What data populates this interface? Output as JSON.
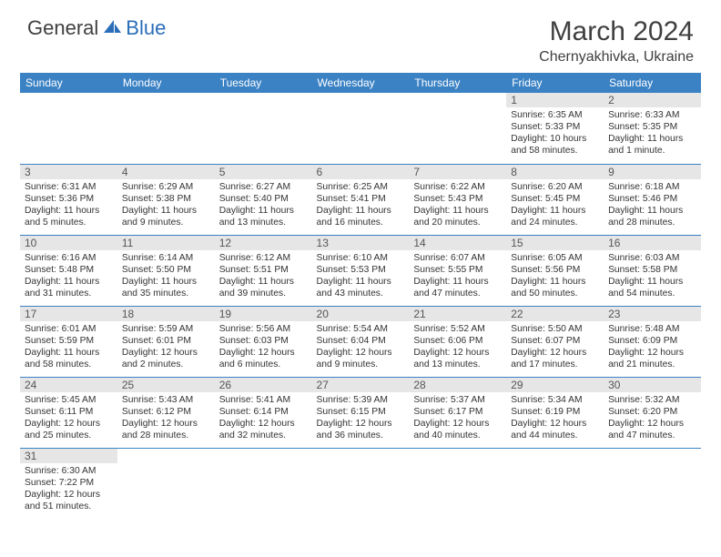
{
  "logo": {
    "text1": "General",
    "text2": "Blue"
  },
  "title": "March 2024",
  "location": "Chernyakhivka, Ukraine",
  "dayHeaders": [
    "Sunday",
    "Monday",
    "Tuesday",
    "Wednesday",
    "Thursday",
    "Friday",
    "Saturday"
  ],
  "colors": {
    "header_bg": "#3b82c4",
    "daynum_bg": "#e6e6e6",
    "row_divider": "#3b82c4",
    "logo_blue": "#2a6db8",
    "text": "#404040"
  },
  "weeks": [
    [
      null,
      null,
      null,
      null,
      null,
      {
        "n": "1",
        "sr": "Sunrise: 6:35 AM",
        "ss": "Sunset: 5:33 PM",
        "d1": "Daylight: 10 hours",
        "d2": "and 58 minutes."
      },
      {
        "n": "2",
        "sr": "Sunrise: 6:33 AM",
        "ss": "Sunset: 5:35 PM",
        "d1": "Daylight: 11 hours",
        "d2": "and 1 minute."
      }
    ],
    [
      {
        "n": "3",
        "sr": "Sunrise: 6:31 AM",
        "ss": "Sunset: 5:36 PM",
        "d1": "Daylight: 11 hours",
        "d2": "and 5 minutes."
      },
      {
        "n": "4",
        "sr": "Sunrise: 6:29 AM",
        "ss": "Sunset: 5:38 PM",
        "d1": "Daylight: 11 hours",
        "d2": "and 9 minutes."
      },
      {
        "n": "5",
        "sr": "Sunrise: 6:27 AM",
        "ss": "Sunset: 5:40 PM",
        "d1": "Daylight: 11 hours",
        "d2": "and 13 minutes."
      },
      {
        "n": "6",
        "sr": "Sunrise: 6:25 AM",
        "ss": "Sunset: 5:41 PM",
        "d1": "Daylight: 11 hours",
        "d2": "and 16 minutes."
      },
      {
        "n": "7",
        "sr": "Sunrise: 6:22 AM",
        "ss": "Sunset: 5:43 PM",
        "d1": "Daylight: 11 hours",
        "d2": "and 20 minutes."
      },
      {
        "n": "8",
        "sr": "Sunrise: 6:20 AM",
        "ss": "Sunset: 5:45 PM",
        "d1": "Daylight: 11 hours",
        "d2": "and 24 minutes."
      },
      {
        "n": "9",
        "sr": "Sunrise: 6:18 AM",
        "ss": "Sunset: 5:46 PM",
        "d1": "Daylight: 11 hours",
        "d2": "and 28 minutes."
      }
    ],
    [
      {
        "n": "10",
        "sr": "Sunrise: 6:16 AM",
        "ss": "Sunset: 5:48 PM",
        "d1": "Daylight: 11 hours",
        "d2": "and 31 minutes."
      },
      {
        "n": "11",
        "sr": "Sunrise: 6:14 AM",
        "ss": "Sunset: 5:50 PM",
        "d1": "Daylight: 11 hours",
        "d2": "and 35 minutes."
      },
      {
        "n": "12",
        "sr": "Sunrise: 6:12 AM",
        "ss": "Sunset: 5:51 PM",
        "d1": "Daylight: 11 hours",
        "d2": "and 39 minutes."
      },
      {
        "n": "13",
        "sr": "Sunrise: 6:10 AM",
        "ss": "Sunset: 5:53 PM",
        "d1": "Daylight: 11 hours",
        "d2": "and 43 minutes."
      },
      {
        "n": "14",
        "sr": "Sunrise: 6:07 AM",
        "ss": "Sunset: 5:55 PM",
        "d1": "Daylight: 11 hours",
        "d2": "and 47 minutes."
      },
      {
        "n": "15",
        "sr": "Sunrise: 6:05 AM",
        "ss": "Sunset: 5:56 PM",
        "d1": "Daylight: 11 hours",
        "d2": "and 50 minutes."
      },
      {
        "n": "16",
        "sr": "Sunrise: 6:03 AM",
        "ss": "Sunset: 5:58 PM",
        "d1": "Daylight: 11 hours",
        "d2": "and 54 minutes."
      }
    ],
    [
      {
        "n": "17",
        "sr": "Sunrise: 6:01 AM",
        "ss": "Sunset: 5:59 PM",
        "d1": "Daylight: 11 hours",
        "d2": "and 58 minutes."
      },
      {
        "n": "18",
        "sr": "Sunrise: 5:59 AM",
        "ss": "Sunset: 6:01 PM",
        "d1": "Daylight: 12 hours",
        "d2": "and 2 minutes."
      },
      {
        "n": "19",
        "sr": "Sunrise: 5:56 AM",
        "ss": "Sunset: 6:03 PM",
        "d1": "Daylight: 12 hours",
        "d2": "and 6 minutes."
      },
      {
        "n": "20",
        "sr": "Sunrise: 5:54 AM",
        "ss": "Sunset: 6:04 PM",
        "d1": "Daylight: 12 hours",
        "d2": "and 9 minutes."
      },
      {
        "n": "21",
        "sr": "Sunrise: 5:52 AM",
        "ss": "Sunset: 6:06 PM",
        "d1": "Daylight: 12 hours",
        "d2": "and 13 minutes."
      },
      {
        "n": "22",
        "sr": "Sunrise: 5:50 AM",
        "ss": "Sunset: 6:07 PM",
        "d1": "Daylight: 12 hours",
        "d2": "and 17 minutes."
      },
      {
        "n": "23",
        "sr": "Sunrise: 5:48 AM",
        "ss": "Sunset: 6:09 PM",
        "d1": "Daylight: 12 hours",
        "d2": "and 21 minutes."
      }
    ],
    [
      {
        "n": "24",
        "sr": "Sunrise: 5:45 AM",
        "ss": "Sunset: 6:11 PM",
        "d1": "Daylight: 12 hours",
        "d2": "and 25 minutes."
      },
      {
        "n": "25",
        "sr": "Sunrise: 5:43 AM",
        "ss": "Sunset: 6:12 PM",
        "d1": "Daylight: 12 hours",
        "d2": "and 28 minutes."
      },
      {
        "n": "26",
        "sr": "Sunrise: 5:41 AM",
        "ss": "Sunset: 6:14 PM",
        "d1": "Daylight: 12 hours",
        "d2": "and 32 minutes."
      },
      {
        "n": "27",
        "sr": "Sunrise: 5:39 AM",
        "ss": "Sunset: 6:15 PM",
        "d1": "Daylight: 12 hours",
        "d2": "and 36 minutes."
      },
      {
        "n": "28",
        "sr": "Sunrise: 5:37 AM",
        "ss": "Sunset: 6:17 PM",
        "d1": "Daylight: 12 hours",
        "d2": "and 40 minutes."
      },
      {
        "n": "29",
        "sr": "Sunrise: 5:34 AM",
        "ss": "Sunset: 6:19 PM",
        "d1": "Daylight: 12 hours",
        "d2": "and 44 minutes."
      },
      {
        "n": "30",
        "sr": "Sunrise: 5:32 AM",
        "ss": "Sunset: 6:20 PM",
        "d1": "Daylight: 12 hours",
        "d2": "and 47 minutes."
      }
    ],
    [
      {
        "n": "31",
        "sr": "Sunrise: 6:30 AM",
        "ss": "Sunset: 7:22 PM",
        "d1": "Daylight: 12 hours",
        "d2": "and 51 minutes."
      },
      null,
      null,
      null,
      null,
      null,
      null
    ]
  ]
}
